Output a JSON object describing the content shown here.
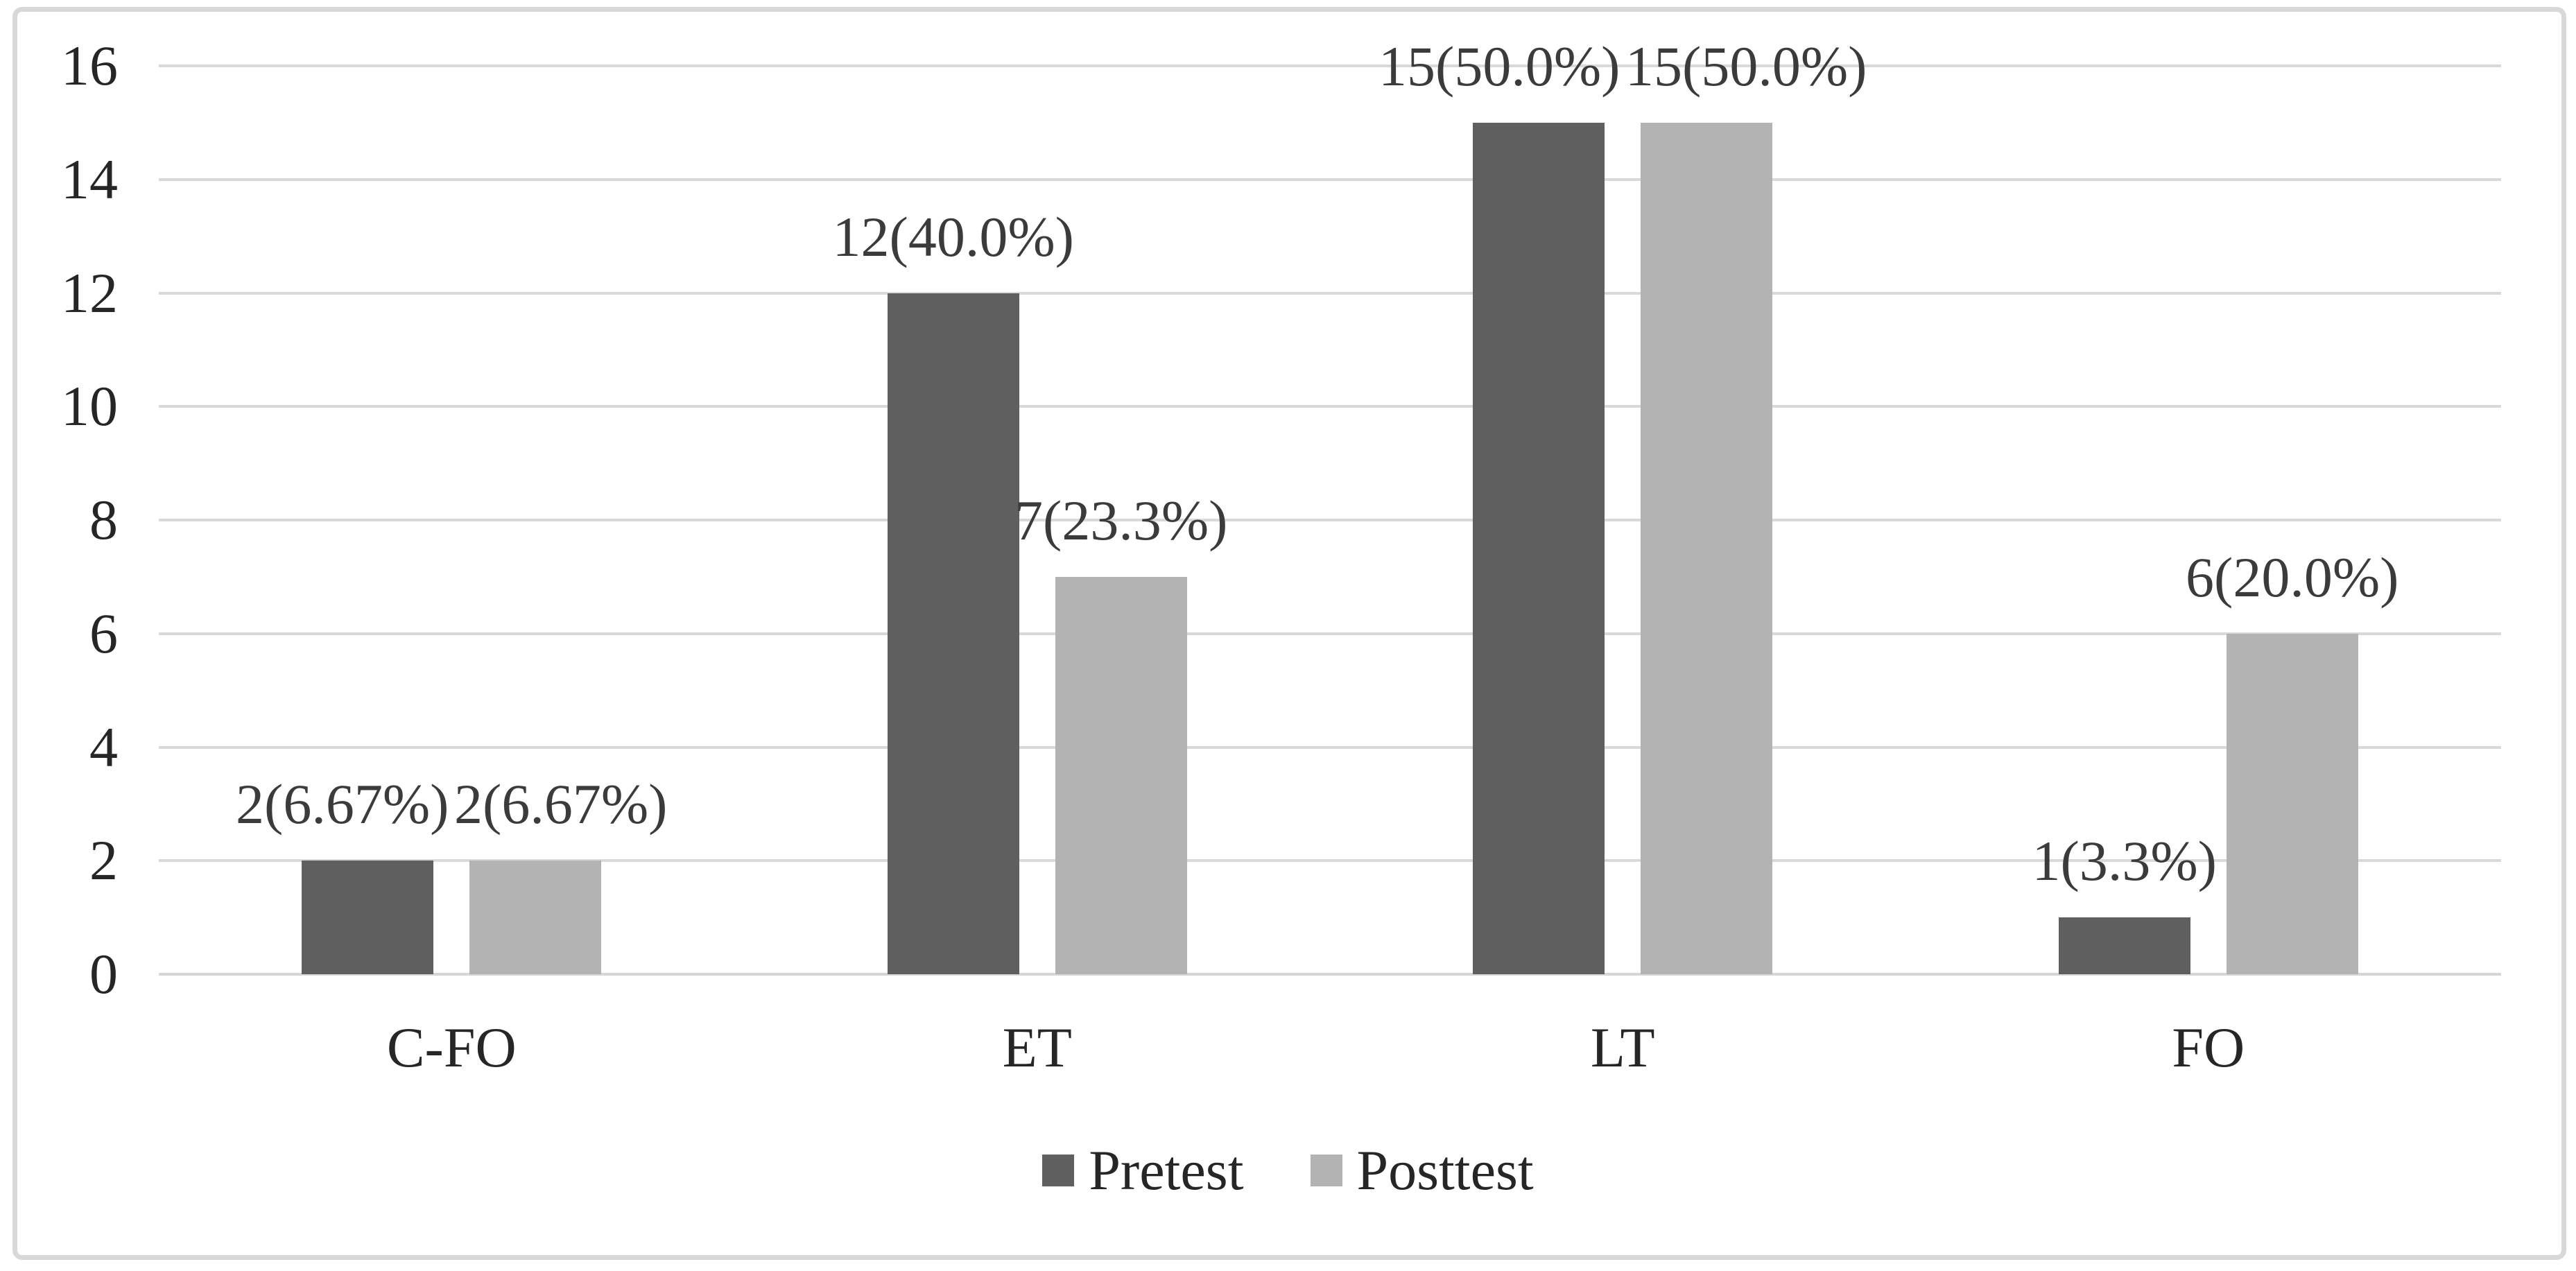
{
  "chart_data": {
    "type": "bar",
    "title": "",
    "xlabel": "",
    "ylabel": "",
    "categories": [
      "C-FO",
      "ET",
      "LT",
      "FO"
    ],
    "series": [
      {
        "name": "Pretest",
        "color": "#5f5f5f",
        "values": [
          2,
          12,
          15,
          1
        ],
        "labels": [
          "2(6.67%)",
          "12(40.0%)",
          "15(50.0%)",
          "1(3.3%)"
        ]
      },
      {
        "name": "Posttest",
        "color": "#b3b3b3",
        "values": [
          2,
          7,
          15,
          6
        ],
        "labels": [
          "2(6.67%)",
          "7(23.3%)",
          "15(50.0%)",
          "6(20.0%)"
        ]
      }
    ],
    "y_axis": {
      "min": 0,
      "max": 16,
      "step": 2,
      "ticks": [
        "0",
        "2",
        "4",
        "6",
        "8",
        "10",
        "12",
        "14",
        "16"
      ]
    },
    "grid": true,
    "legend_position": "bottom",
    "colors": {
      "gridline": "#d9d9d9",
      "frame_border": "#d8d8d8",
      "text": "#262626",
      "background": "#ffffff"
    }
  }
}
